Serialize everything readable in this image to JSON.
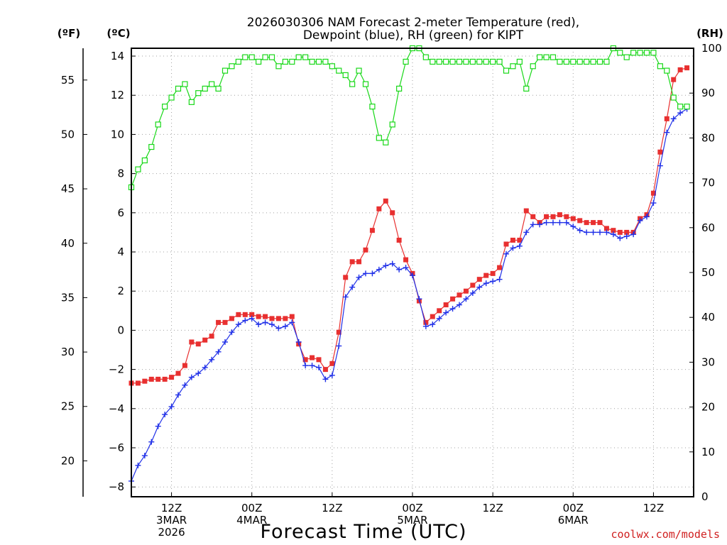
{
  "chart_data": {
    "type": "line",
    "title_line1": "2026030306 NAM Forecast 2-meter Temperature (red),",
    "title_line2": "Dewpoint (blue), RH (green) for KIPT",
    "y_left_outer_unit": "(ºF)",
    "y_left_inner_unit": "(ºC)",
    "y_right_unit": "(RH)",
    "xlabel": "Forecast Time (UTC)",
    "credit": "coolwx.com/models",
    "celsius_range": [
      -8.5,
      14.4
    ],
    "rh_range": [
      0,
      100
    ],
    "forecast_hour_range": [
      0,
      84
    ],
    "celsius_ticks": [
      "14",
      "12",
      "10",
      "8",
      "6",
      "4",
      "2",
      "0",
      "−2",
      "−4",
      "−6",
      "−8"
    ],
    "celsius_tick_values": [
      14,
      12,
      10,
      8,
      6,
      4,
      2,
      0,
      -2,
      -4,
      -6,
      -8
    ],
    "fahrenheit_ticks": [
      "55",
      "50",
      "45",
      "40",
      "35",
      "30",
      "25",
      "20"
    ],
    "fahrenheit_tick_values": [
      55,
      50,
      45,
      40,
      35,
      30,
      25,
      20
    ],
    "rh_ticks": [
      "100",
      "90",
      "80",
      "70",
      "60",
      "50",
      "40",
      "30",
      "20",
      "10",
      "0"
    ],
    "rh_tick_values": [
      100,
      90,
      80,
      70,
      60,
      50,
      40,
      30,
      20,
      10,
      0
    ],
    "x_ticks": [
      {
        "hour": 6,
        "lines": [
          "12Z",
          "3MAR",
          "2026"
        ]
      },
      {
        "hour": 18,
        "lines": [
          "00Z",
          "4MAR"
        ]
      },
      {
        "hour": 30,
        "lines": [
          "12Z"
        ]
      },
      {
        "hour": 42,
        "lines": [
          "00Z",
          "5MAR"
        ]
      },
      {
        "hour": 54,
        "lines": [
          "12Z"
        ]
      },
      {
        "hour": 66,
        "lines": [
          "00Z",
          "6MAR"
        ]
      },
      {
        "hour": 78,
        "lines": [
          "12Z"
        ]
      }
    ],
    "series": [
      {
        "name": "Temperature",
        "unit": "C",
        "color": "#e83030",
        "marker": "filled-square",
        "values": [
          -2.7,
          -2.7,
          -2.6,
          -2.5,
          -2.5,
          -2.5,
          -2.4,
          -2.2,
          -1.8,
          -0.6,
          -0.7,
          -0.5,
          -0.3,
          0.4,
          0.4,
          0.6,
          0.8,
          0.8,
          0.8,
          0.7,
          0.7,
          0.6,
          0.6,
          0.6,
          0.7,
          -0.7,
          -1.5,
          -1.4,
          -1.5,
          -2.0,
          -1.7,
          -0.1,
          2.7,
          3.5,
          3.5,
          4.1,
          5.1,
          6.2,
          6.6,
          6.0,
          4.6,
          3.6,
          2.9,
          1.5,
          0.4,
          0.7,
          1.0,
          1.3,
          1.6,
          1.8,
          2.0,
          2.3,
          2.6,
          2.8,
          2.9,
          3.2,
          4.4,
          4.6,
          4.6,
          6.1,
          5.8,
          5.5,
          5.8,
          5.8,
          5.9,
          5.8,
          5.7,
          5.6,
          5.5,
          5.5,
          5.5,
          5.2,
          5.1,
          5.0,
          5.0,
          5.0,
          5.7,
          5.9,
          7.0,
          9.1,
          10.8,
          12.8,
          13.3,
          13.4
        ]
      },
      {
        "name": "Dewpoint",
        "unit": "C",
        "color": "#2030e8",
        "marker": "plus",
        "values": [
          -7.7,
          -6.9,
          -6.4,
          -5.7,
          -4.9,
          -4.3,
          -3.9,
          -3.3,
          -2.8,
          -2.4,
          -2.2,
          -1.9,
          -1.5,
          -1.1,
          -0.6,
          -0.1,
          0.3,
          0.5,
          0.6,
          0.3,
          0.4,
          0.3,
          0.1,
          0.2,
          0.4,
          -0.6,
          -1.8,
          -1.8,
          -1.9,
          -2.5,
          -2.3,
          -0.8,
          1.7,
          2.2,
          2.7,
          2.9,
          2.9,
          3.1,
          3.3,
          3.4,
          3.1,
          3.2,
          2.8,
          1.6,
          0.2,
          0.3,
          0.6,
          0.9,
          1.1,
          1.3,
          1.6,
          1.9,
          2.2,
          2.4,
          2.5,
          2.6,
          3.9,
          4.2,
          4.3,
          5.0,
          5.4,
          5.4,
          5.5,
          5.5,
          5.5,
          5.5,
          5.3,
          5.1,
          5.0,
          5.0,
          5.0,
          5.0,
          4.9,
          4.7,
          4.8,
          4.9,
          5.6,
          5.8,
          6.5,
          8.4,
          10.1,
          10.8,
          11.1,
          11.3
        ]
      },
      {
        "name": "RH",
        "unit": "%",
        "color": "#18d818",
        "marker": "open-square",
        "values": [
          69,
          73,
          75,
          78,
          83,
          87,
          89,
          91,
          92,
          88,
          90,
          91,
          92,
          91,
          95,
          96,
          97,
          98,
          98,
          97,
          98,
          98,
          96,
          97,
          97,
          98,
          98,
          97,
          97,
          97,
          96,
          95,
          94,
          92,
          95,
          92,
          87,
          80,
          79,
          83,
          91,
          97,
          100,
          100,
          98,
          97,
          97,
          97,
          97,
          97,
          97,
          97,
          97,
          97,
          97,
          97,
          95,
          96,
          97,
          91,
          96,
          98,
          98,
          98,
          97,
          97,
          97,
          97,
          97,
          97,
          97,
          97,
          100,
          99,
          98,
          99,
          99,
          99,
          99,
          96,
          95,
          89,
          87,
          87
        ]
      }
    ]
  }
}
